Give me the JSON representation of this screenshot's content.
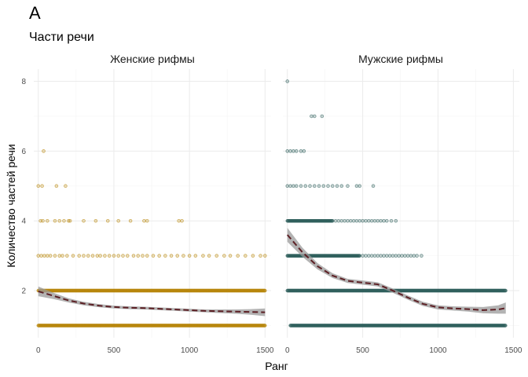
{
  "chart_data": {
    "type": "scatter",
    "tag": "A",
    "title": "Части речи",
    "xlabel": "Ранг",
    "ylabel": "Количество частей речи",
    "grid": true,
    "panels": [
      {
        "name": "Женские рифмы",
        "color": "#b8860b",
        "xlim": [
          -30,
          1540
        ],
        "ylim": [
          0.65,
          8.35
        ],
        "xticks": [
          0,
          500,
          1000,
          1500
        ],
        "yticks": [
          2,
          4,
          6,
          8
        ],
        "dense_rows": [
          {
            "y": 1,
            "x_from": 0,
            "x_to": 1500
          },
          {
            "y": 2,
            "x_from": 0,
            "x_to": 1500
          }
        ],
        "points": [
          [
            35,
            6
          ],
          [
            0,
            5
          ],
          [
            25,
            5
          ],
          [
            120,
            5
          ],
          [
            180,
            5
          ],
          [
            15,
            4
          ],
          [
            30,
            4
          ],
          [
            60,
            4
          ],
          [
            110,
            4
          ],
          [
            140,
            4
          ],
          [
            170,
            4
          ],
          [
            200,
            4
          ],
          [
            210,
            4
          ],
          [
            300,
            4
          ],
          [
            380,
            4
          ],
          [
            460,
            4
          ],
          [
            530,
            4
          ],
          [
            610,
            4
          ],
          [
            700,
            4
          ],
          [
            720,
            4
          ],
          [
            930,
            4
          ],
          [
            950,
            4
          ],
          [
            0,
            3
          ],
          [
            20,
            3
          ],
          [
            40,
            3
          ],
          [
            60,
            3
          ],
          [
            80,
            3
          ],
          [
            110,
            3
          ],
          [
            140,
            3
          ],
          [
            160,
            3
          ],
          [
            190,
            3
          ],
          [
            230,
            3
          ],
          [
            270,
            3
          ],
          [
            300,
            3
          ],
          [
            330,
            3
          ],
          [
            360,
            3
          ],
          [
            390,
            3
          ],
          [
            410,
            3
          ],
          [
            440,
            3
          ],
          [
            470,
            3
          ],
          [
            500,
            3
          ],
          [
            530,
            3
          ],
          [
            560,
            3
          ],
          [
            590,
            3
          ],
          [
            630,
            3
          ],
          [
            660,
            3
          ],
          [
            690,
            3
          ],
          [
            720,
            3
          ],
          [
            760,
            3
          ],
          [
            800,
            3
          ],
          [
            840,
            3
          ],
          [
            880,
            3
          ],
          [
            920,
            3
          ],
          [
            960,
            3
          ],
          [
            1000,
            3
          ],
          [
            1040,
            3
          ],
          [
            1090,
            3
          ],
          [
            1130,
            3
          ],
          [
            1180,
            3
          ],
          [
            1230,
            3
          ],
          [
            1270,
            3
          ],
          [
            1320,
            3
          ],
          [
            1370,
            3
          ],
          [
            1420,
            3
          ],
          [
            1470,
            3
          ],
          [
            1500,
            3
          ]
        ],
        "smooth": [
          [
            0,
            1.98
          ],
          [
            100,
            1.85
          ],
          [
            200,
            1.72
          ],
          [
            300,
            1.63
          ],
          [
            400,
            1.57
          ],
          [
            500,
            1.53
          ],
          [
            600,
            1.51
          ],
          [
            700,
            1.5
          ],
          [
            800,
            1.48
          ],
          [
            900,
            1.46
          ],
          [
            1000,
            1.44
          ],
          [
            1100,
            1.42
          ],
          [
            1200,
            1.41
          ],
          [
            1300,
            1.4
          ],
          [
            1400,
            1.39
          ],
          [
            1500,
            1.38
          ]
        ],
        "smooth_se": [
          0.14,
          0.09,
          0.06,
          0.05,
          0.045,
          0.04,
          0.04,
          0.04,
          0.04,
          0.04,
          0.04,
          0.04,
          0.05,
          0.06,
          0.08,
          0.11
        ]
      },
      {
        "name": "Мужские рифмы",
        "color": "#2f5f5c",
        "xlim": [
          -30,
          1540
        ],
        "ylim": [
          0.65,
          8.35
        ],
        "xticks": [
          0,
          500,
          1000,
          1500
        ],
        "yticks": [
          2,
          4,
          6,
          8
        ],
        "dense_rows": [
          {
            "y": 1,
            "x_from": 20,
            "x_to": 1450
          },
          {
            "y": 2,
            "x_from": 0,
            "x_to": 1450
          },
          {
            "y": 3,
            "x_from": 0,
            "x_to": 480
          },
          {
            "y": 4,
            "x_from": 0,
            "x_to": 300
          }
        ],
        "points": [
          [
            0,
            8
          ],
          [
            160,
            7
          ],
          [
            180,
            7
          ],
          [
            230,
            7
          ],
          [
            0,
            6
          ],
          [
            20,
            6
          ],
          [
            40,
            6
          ],
          [
            60,
            6
          ],
          [
            90,
            6
          ],
          [
            110,
            6
          ],
          [
            0,
            5
          ],
          [
            20,
            5
          ],
          [
            40,
            5
          ],
          [
            60,
            5
          ],
          [
            90,
            5
          ],
          [
            120,
            5
          ],
          [
            150,
            5
          ],
          [
            180,
            5
          ],
          [
            210,
            5
          ],
          [
            240,
            5
          ],
          [
            270,
            5
          ],
          [
            300,
            5
          ],
          [
            330,
            5
          ],
          [
            360,
            5
          ],
          [
            400,
            5
          ],
          [
            460,
            5
          ],
          [
            480,
            5
          ],
          [
            570,
            5
          ],
          [
            320,
            4
          ],
          [
            340,
            4
          ],
          [
            360,
            4
          ],
          [
            380,
            4
          ],
          [
            400,
            4
          ],
          [
            420,
            4
          ],
          [
            440,
            4
          ],
          [
            460,
            4
          ],
          [
            480,
            4
          ],
          [
            500,
            4
          ],
          [
            520,
            4
          ],
          [
            540,
            4
          ],
          [
            560,
            4
          ],
          [
            580,
            4
          ],
          [
            600,
            4
          ],
          [
            620,
            4
          ],
          [
            640,
            4
          ],
          [
            660,
            4
          ],
          [
            690,
            4
          ],
          [
            720,
            4
          ],
          [
            500,
            3
          ],
          [
            520,
            3
          ],
          [
            540,
            3
          ],
          [
            560,
            3
          ],
          [
            580,
            3
          ],
          [
            600,
            3
          ],
          [
            620,
            3
          ],
          [
            640,
            3
          ],
          [
            660,
            3
          ],
          [
            680,
            3
          ],
          [
            700,
            3
          ],
          [
            720,
            3
          ],
          [
            740,
            3
          ],
          [
            760,
            3
          ],
          [
            780,
            3
          ],
          [
            800,
            3
          ],
          [
            820,
            3
          ],
          [
            840,
            3
          ],
          [
            860,
            3
          ],
          [
            890,
            3
          ]
        ],
        "smooth": [
          [
            0,
            3.6
          ],
          [
            100,
            3.1
          ],
          [
            200,
            2.7
          ],
          [
            300,
            2.43
          ],
          [
            400,
            2.28
          ],
          [
            500,
            2.23
          ],
          [
            600,
            2.18
          ],
          [
            700,
            2.0
          ],
          [
            800,
            1.8
          ],
          [
            900,
            1.62
          ],
          [
            1000,
            1.52
          ],
          [
            1100,
            1.49
          ],
          [
            1200,
            1.47
          ],
          [
            1300,
            1.44
          ],
          [
            1400,
            1.46
          ],
          [
            1450,
            1.5
          ]
        ],
        "smooth_se": [
          0.2,
          0.13,
          0.09,
          0.07,
          0.06,
          0.06,
          0.06,
          0.06,
          0.06,
          0.06,
          0.06,
          0.06,
          0.07,
          0.09,
          0.12,
          0.16
        ]
      }
    ]
  }
}
